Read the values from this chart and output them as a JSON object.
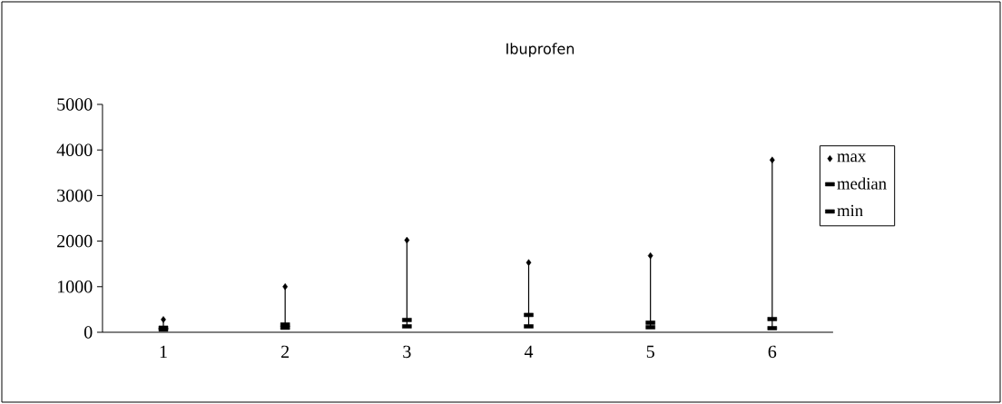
{
  "chart_data": {
    "type": "scatter",
    "title": "Ibuprofen",
    "categories": [
      "1",
      "2",
      "3",
      "4",
      "5",
      "6"
    ],
    "series": [
      {
        "name": "max",
        "color": "#000000",
        "marker": "diamond",
        "values": [
          280,
          1000,
          2020,
          1530,
          1680,
          3780
        ]
      },
      {
        "name": "median",
        "color": "#000000",
        "values": [
          100,
          170,
          270,
          380,
          210,
          290
        ]
      },
      {
        "name": "min",
        "color": "#000000",
        "values": [
          60,
          100,
          130,
          130,
          110,
          90
        ]
      }
    ],
    "ylim": [
      0,
      5000
    ],
    "yticks": [
      0,
      1000,
      2000,
      3000,
      4000,
      5000
    ],
    "legend": "right"
  }
}
